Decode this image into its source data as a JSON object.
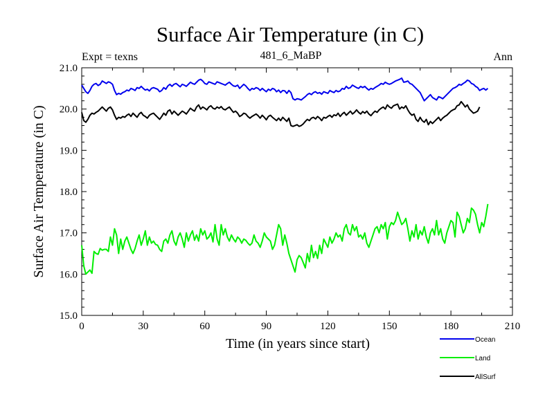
{
  "chart_data": {
    "type": "line",
    "title": "Surface Air Temperature (in C)",
    "subtitle": "481_6_MaBP",
    "left_label": "Expt = texns",
    "right_label": "Ann",
    "xlabel": "Time (in years since start)",
    "ylabel": "Surface Air Temperature (in C)",
    "xlim": [
      0,
      210
    ],
    "ylim": [
      15.0,
      21.0
    ],
    "x_ticks": [
      0,
      30,
      60,
      90,
      120,
      150,
      180,
      210
    ],
    "x_tick_labels": [
      "0",
      "30",
      "60",
      "90",
      "120",
      "150",
      "180",
      "210"
    ],
    "y_ticks": [
      15.0,
      16.0,
      17.0,
      18.0,
      19.0,
      20.0,
      21.0
    ],
    "y_tick_labels": [
      "15.0",
      "16.0",
      "17.0",
      "18.0",
      "19.0",
      "20.0",
      "21.0"
    ],
    "x_step": 1,
    "series": [
      {
        "name": "Ocean",
        "color": "#0000ee",
        "values": [
          20.58,
          20.5,
          20.42,
          20.38,
          20.45,
          20.55,
          20.6,
          20.62,
          20.57,
          20.6,
          20.68,
          20.65,
          20.62,
          20.66,
          20.64,
          20.6,
          20.45,
          20.35,
          20.38,
          20.36,
          20.4,
          20.42,
          20.46,
          20.44,
          20.5,
          20.48,
          20.45,
          20.52,
          20.5,
          20.55,
          20.5,
          20.46,
          20.48,
          20.44,
          20.5,
          20.52,
          20.5,
          20.48,
          20.42,
          20.45,
          20.52,
          20.48,
          20.56,
          20.6,
          20.55,
          20.6,
          20.62,
          20.58,
          20.54,
          20.6,
          20.58,
          20.55,
          20.6,
          20.65,
          20.62,
          20.6,
          20.65,
          20.7,
          20.72,
          20.68,
          20.62,
          20.6,
          20.66,
          20.64,
          20.62,
          20.6,
          20.66,
          20.64,
          20.62,
          20.6,
          20.58,
          20.62,
          20.65,
          20.6,
          20.56,
          20.55,
          20.58,
          20.5,
          20.55,
          20.6,
          20.56,
          20.5,
          20.45,
          20.5,
          20.48,
          20.52,
          20.5,
          20.45,
          20.5,
          20.46,
          20.42,
          20.48,
          20.45,
          20.5,
          20.48,
          20.42,
          20.46,
          20.4,
          20.45,
          20.44,
          20.38,
          20.45,
          20.4,
          20.25,
          20.22,
          20.25,
          20.24,
          20.22,
          20.26,
          20.3,
          20.35,
          20.38,
          20.35,
          20.4,
          20.42,
          20.38,
          20.4,
          20.36,
          20.42,
          20.4,
          20.38,
          20.45,
          20.42,
          20.4,
          20.45,
          20.42,
          20.44,
          20.5,
          20.48,
          20.55,
          20.5,
          20.52,
          20.58,
          20.55,
          20.52,
          20.5,
          20.55,
          20.52,
          20.55,
          20.5,
          20.46,
          20.5,
          20.48,
          20.52,
          20.55,
          20.58,
          20.62,
          20.6,
          20.65,
          20.62,
          20.6,
          20.62,
          20.65,
          20.68,
          20.7,
          20.72,
          20.75,
          20.65,
          20.66,
          20.68,
          20.62,
          20.6,
          20.55,
          20.5,
          20.45,
          20.4,
          20.3,
          20.2,
          20.25,
          20.3,
          20.35,
          20.28,
          20.25,
          20.22,
          20.3,
          20.28,
          20.25,
          20.3,
          20.35,
          20.4,
          20.45,
          20.5,
          20.52,
          20.55,
          20.6,
          20.58,
          20.62,
          20.65,
          20.7,
          20.68,
          20.62,
          20.6,
          20.55,
          20.52,
          20.45,
          20.48,
          20.5,
          20.46,
          20.5
        ]
      },
      {
        "name": "Land",
        "color": "#00ee00",
        "values": [
          16.7,
          16.2,
          16.0,
          16.05,
          16.1,
          16.02,
          16.55,
          16.5,
          16.48,
          16.62,
          16.58,
          16.6,
          16.6,
          16.55,
          16.9,
          16.7,
          17.1,
          16.95,
          16.5,
          16.85,
          16.6,
          16.8,
          16.9,
          16.75,
          16.6,
          16.5,
          16.62,
          16.8,
          16.95,
          16.7,
          16.85,
          17.05,
          16.7,
          16.9,
          16.75,
          16.8,
          16.72,
          16.7,
          16.6,
          16.55,
          16.8,
          16.85,
          16.75,
          16.95,
          17.05,
          16.8,
          16.7,
          16.9,
          17.0,
          16.85,
          16.65,
          17.0,
          16.8,
          16.95,
          17.05,
          16.82,
          16.95,
          16.8,
          17.1,
          16.95,
          17.05,
          16.85,
          16.9,
          17.0,
          16.78,
          17.2,
          16.85,
          16.7,
          17.2,
          16.95,
          17.1,
          16.9,
          16.8,
          16.95,
          16.85,
          16.78,
          16.9,
          16.85,
          16.75,
          16.85,
          16.82,
          16.75,
          16.7,
          16.75,
          16.95,
          16.8,
          16.75,
          16.65,
          16.8,
          17.0,
          16.9,
          16.85,
          16.8,
          16.6,
          16.7,
          16.95,
          17.2,
          17.1,
          16.7,
          16.95,
          16.75,
          16.5,
          16.35,
          16.2,
          16.05,
          16.35,
          16.45,
          16.4,
          16.28,
          16.15,
          16.5,
          16.3,
          16.7,
          16.4,
          16.55,
          16.38,
          16.7,
          16.5,
          16.85,
          16.75,
          16.65,
          16.9,
          16.75,
          16.85,
          17.0,
          16.9,
          16.95,
          16.8,
          17.1,
          17.2,
          17.0,
          16.95,
          17.2,
          17.05,
          17.15,
          16.9,
          16.95,
          16.85,
          17.0,
          16.75,
          16.65,
          16.8,
          16.95,
          17.1,
          17.15,
          17.0,
          17.2,
          17.1,
          17.25,
          16.85,
          17.15,
          17.25,
          17.2,
          17.3,
          17.5,
          17.35,
          17.2,
          17.25,
          17.35,
          17.1,
          16.8,
          17.05,
          16.9,
          17.2,
          16.85,
          17.05,
          16.95,
          17.15,
          16.9,
          16.75,
          17.0,
          17.1,
          16.95,
          17.3,
          16.95,
          17.1,
          16.85,
          16.75,
          17.0,
          17.15,
          17.3,
          17.25,
          16.9,
          17.5,
          17.4,
          17.2,
          17.0,
          17.1,
          17.35,
          17.25,
          17.6,
          17.55,
          17.45,
          17.2,
          17.0,
          17.25,
          17.15,
          17.4,
          17.7
        ]
      },
      {
        "name": "AllSurf",
        "color": "#000000",
        "values": [
          19.92,
          19.72,
          19.68,
          19.75,
          19.85,
          19.9,
          19.88,
          19.92,
          19.95,
          20.0,
          20.05,
          20.0,
          19.95,
          20.02,
          20.05,
          19.98,
          19.85,
          19.75,
          19.8,
          19.78,
          19.82,
          19.8,
          19.85,
          19.88,
          19.82,
          19.9,
          19.85,
          19.8,
          19.88,
          19.92,
          19.85,
          19.82,
          19.78,
          19.85,
          19.88,
          19.9,
          19.85,
          19.8,
          19.75,
          19.82,
          19.9,
          19.85,
          19.95,
          19.98,
          19.88,
          19.95,
          19.9,
          19.85,
          19.9,
          19.95,
          19.92,
          19.88,
          19.95,
          20.02,
          19.98,
          19.95,
          20.05,
          20.1,
          20.0,
          20.05,
          20.02,
          19.98,
          20.05,
          20.08,
          20.02,
          20.0,
          20.05,
          20.02,
          20.06,
          20.0,
          19.98,
          20.02,
          20.05,
          19.98,
          19.92,
          19.95,
          19.9,
          19.82,
          19.85,
          19.9,
          19.88,
          19.82,
          19.78,
          19.82,
          19.85,
          19.88,
          19.84,
          19.78,
          19.85,
          19.8,
          19.74,
          19.82,
          19.85,
          19.8,
          19.76,
          19.72,
          19.78,
          19.72,
          19.8,
          19.75,
          19.7,
          19.78,
          19.6,
          19.58,
          19.6,
          19.62,
          19.58,
          19.6,
          19.64,
          19.7,
          19.75,
          19.72,
          19.78,
          19.8,
          19.76,
          19.82,
          19.78,
          19.72,
          19.8,
          19.78,
          19.82,
          19.85,
          19.8,
          19.86,
          19.84,
          19.9,
          19.82,
          19.88,
          19.92,
          19.85,
          19.9,
          19.95,
          19.88,
          19.92,
          19.98,
          19.92,
          19.88,
          19.94,
          19.9,
          19.95,
          19.88,
          19.84,
          19.9,
          19.95,
          19.92,
          19.98,
          20.02,
          20.05,
          20.0,
          20.1,
          20.05,
          20.02,
          20.08,
          20.1,
          20.12,
          20.0,
          20.05,
          20.02,
          20.08,
          19.98,
          19.9,
          19.85,
          19.88,
          19.75,
          19.7,
          19.8,
          19.72,
          19.68,
          19.75,
          19.62,
          19.7,
          19.65,
          19.7,
          19.75,
          19.8,
          19.72,
          19.78,
          19.82,
          19.85,
          19.9,
          19.95,
          19.98,
          20.0,
          20.08,
          20.1,
          20.18,
          20.12,
          20.05,
          20.1,
          20.0,
          19.95,
          19.9,
          19.92,
          19.95,
          20.05
        ]
      }
    ],
    "legend_position": "bottom-right"
  }
}
